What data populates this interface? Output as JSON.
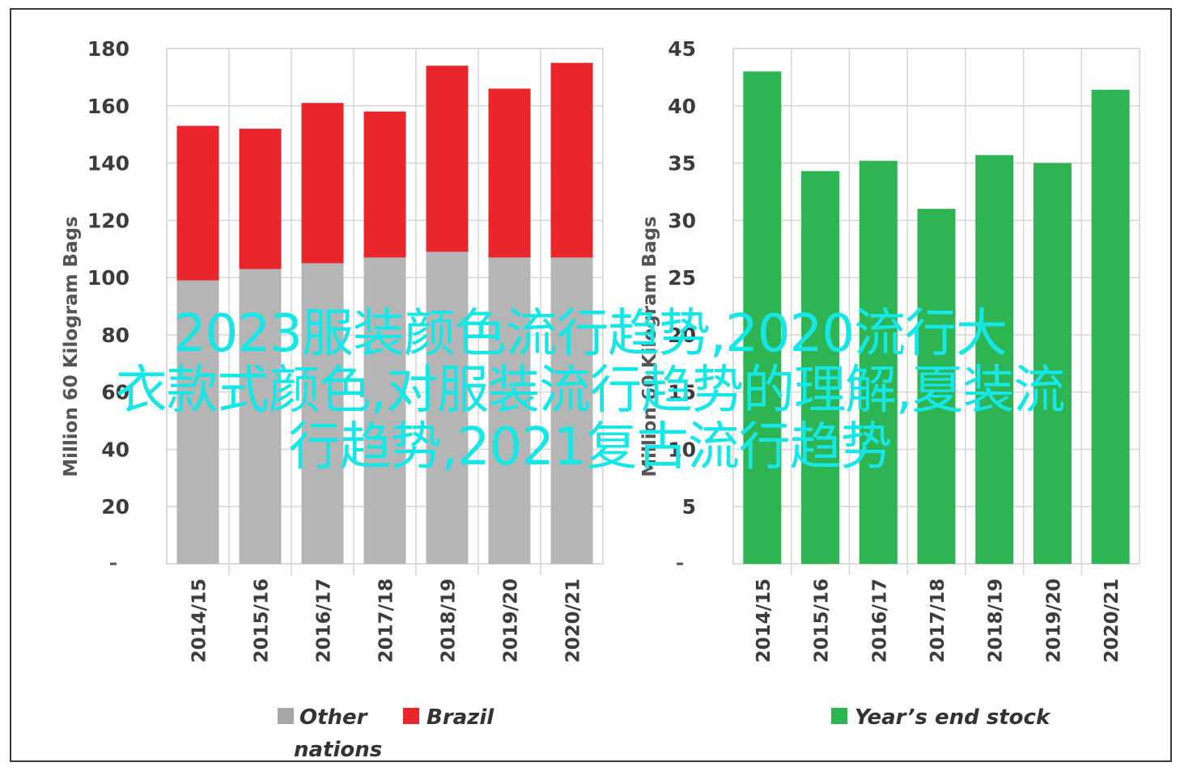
{
  "overlay_caption": {
    "line1": "2023服装颜色流行趋势,2020流行大",
    "line2": "衣款式颜色,对服装流行趋势的理解,夏装流",
    "line3": "行趋势,2021复古流行趋势"
  },
  "chart_data": [
    {
      "type": "bar",
      "stacked": true,
      "categories": [
        "2014/15",
        "2015/16",
        "2016/17",
        "2017/18",
        "2018/19",
        "2019/20",
        "2020/21"
      ],
      "series": [
        {
          "name": "Other nations",
          "color": "#b5b5b5",
          "values": [
            99,
            103,
            105,
            107,
            109,
            107,
            107
          ]
        },
        {
          "name": "Brazil",
          "color": "#e8262c",
          "values": [
            54,
            49,
            56,
            51,
            65,
            59,
            68
          ]
        }
      ],
      "ylabel": "Million 60 Kilogram Bags",
      "ylim": [
        0,
        180
      ],
      "yticks": [
        20,
        40,
        60,
        80,
        100,
        120,
        140,
        160,
        180
      ],
      "grid": true,
      "legend_position": "bottom",
      "legend": [
        {
          "line1": "Other",
          "line2": "nations",
          "color": "#a6a6a6"
        },
        {
          "line1": "Brazil",
          "line2": "",
          "color": "#e8262c"
        }
      ]
    },
    {
      "type": "bar",
      "categories": [
        "2014/15",
        "2015/16",
        "2016/17",
        "2017/18",
        "2018/19",
        "2019/20",
        "2020/21"
      ],
      "series": [
        {
          "name": "Year's end stock",
          "color": "#2fb454",
          "values": [
            43,
            34.3,
            35.2,
            31,
            35.7,
            35,
            41.4
          ]
        }
      ],
      "ylabel": "Million 60 Kilogram Bags",
      "ylim": [
        0,
        45
      ],
      "yticks": [
        5,
        10,
        15,
        20,
        25,
        30,
        35,
        40,
        45
      ],
      "grid": true,
      "legend_position": "bottom",
      "legend": [
        {
          "line1": "Year’s end stock",
          "line2": "",
          "color": "#2fb454"
        }
      ]
    }
  ]
}
